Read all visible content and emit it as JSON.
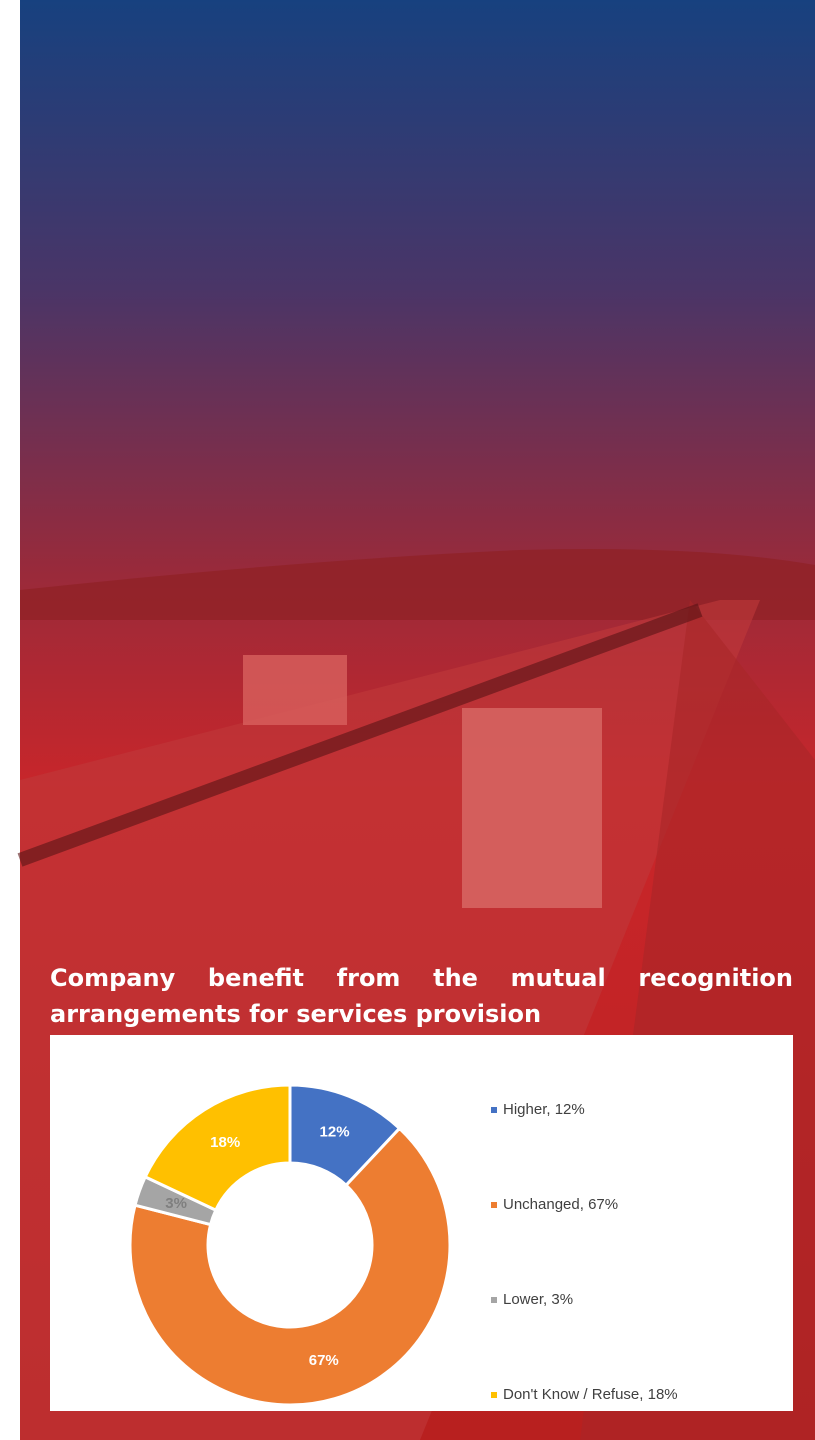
{
  "chart_data": {
    "type": "donut",
    "title": "Company benefit from the mutual recognition arrangements for services provision",
    "categories": [
      "Higher, 12%",
      "Unchanged, 67%",
      "Lower, 3%",
      "Don't Know / Refuse, 18%"
    ],
    "values": [
      12,
      67,
      3,
      18
    ],
    "value_labels": [
      "12%",
      "67%",
      "3%",
      "18%"
    ],
    "colors": [
      "#4472c4",
      "#ed7d31",
      "#a5a5a5",
      "#ffc000"
    ],
    "legend": "right"
  }
}
